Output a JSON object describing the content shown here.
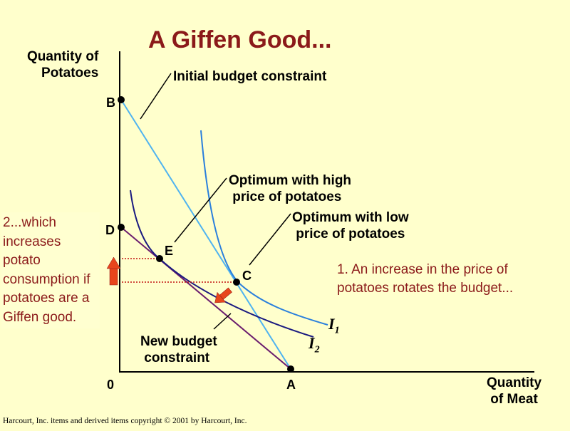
{
  "title": "A Giffen Good...",
  "y_axis_label": "Quantity of\nPotatoes",
  "x_axis_label": "Quantity\nof Meat",
  "origin": "0",
  "points": {
    "A": "A",
    "B": "B",
    "C": "C",
    "D": "D",
    "E": "E"
  },
  "indifference": {
    "i1": "I",
    "i1_sub": "1",
    "i2": "I",
    "i2_sub": "2"
  },
  "annotations": {
    "initial_budget": "Initial budget constraint",
    "opt_high": "Optimum with high\n price of potatoes",
    "opt_low": "Optimum with low\n price of potatoes",
    "new_budget": "New budget\n constraint"
  },
  "note_left": "2...which increases potato consumption if potatoes are a Giffen good.",
  "note_right": "1. An increase in the price of potatoes rotates the budget...",
  "footer": "Harcourt, Inc. items and derived items copyright © 2001  by Harcourt, Inc.",
  "colors": {
    "background": "#ffffcc",
    "title": "#8b1a1a",
    "initial_budget": "#4fb3f0",
    "new_budget": "#6b1d6e",
    "curve_i1": "#2a7fdc",
    "curve_i2": "#1a1a80",
    "arrow": "#e8451c",
    "dotted": "#c01010"
  }
}
